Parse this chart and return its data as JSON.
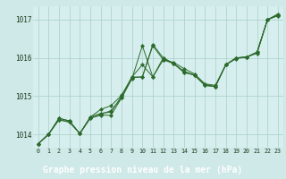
{
  "title": "Graphe pression niveau de la mer (hPa)",
  "fig_background": "#cfe8e8",
  "plot_background": "#d6eeed",
  "label_background": "#2d5a27",
  "label_text_color": "#ffffff",
  "grid_color": "#a8cfc8",
  "line_color": "#2d6b2d",
  "marker_color": "#2d6b2d",
  "xlim": [
    -0.5,
    23.5
  ],
  "ylim": [
    1013.65,
    1017.35
  ],
  "xticks": [
    0,
    1,
    2,
    3,
    4,
    5,
    6,
    7,
    8,
    9,
    10,
    11,
    12,
    13,
    14,
    15,
    16,
    17,
    18,
    19,
    20,
    21,
    22,
    23
  ],
  "yticks": [
    1014,
    1015,
    1016,
    1017
  ],
  "series": [
    [
      1013.75,
      1014.0,
      1014.42,
      1014.35,
      1014.02,
      1014.45,
      1014.55,
      1014.58,
      1015.0,
      1015.48,
      1015.5,
      1016.35,
      1016.0,
      1015.85,
      1015.62,
      1015.55,
      1015.28,
      1015.25,
      1015.82,
      1016.0,
      1016.02,
      1016.12,
      1017.0,
      1017.1
    ],
    [
      1013.75,
      1014.0,
      1014.42,
      1014.35,
      1014.02,
      1014.45,
      1014.65,
      1014.75,
      1015.02,
      1015.5,
      1015.82,
      1015.5,
      1015.95,
      1015.88,
      1015.72,
      1015.58,
      1015.32,
      1015.28,
      1015.82,
      1015.98,
      1016.02,
      1016.15,
      1017.0,
      1017.12
    ],
    [
      1013.75,
      1014.0,
      1014.38,
      1014.32,
      1014.02,
      1014.42,
      1014.5,
      1014.5,
      1014.95,
      1015.45,
      1016.32,
      1015.5,
      1016.0,
      1015.85,
      1015.62,
      1015.55,
      1015.28,
      1015.25,
      1015.82,
      1016.0,
      1016.02,
      1016.15,
      1017.0,
      1017.12
    ],
    [
      1013.75,
      1014.0,
      1014.38,
      1014.32,
      1014.02,
      1014.42,
      1014.52,
      1014.62,
      1014.95,
      1015.5,
      1015.5,
      1016.32,
      1015.95,
      1015.85,
      1015.65,
      1015.55,
      1015.3,
      1015.25,
      1015.82,
      1016.0,
      1016.02,
      1016.15,
      1017.0,
      1017.15
    ]
  ]
}
